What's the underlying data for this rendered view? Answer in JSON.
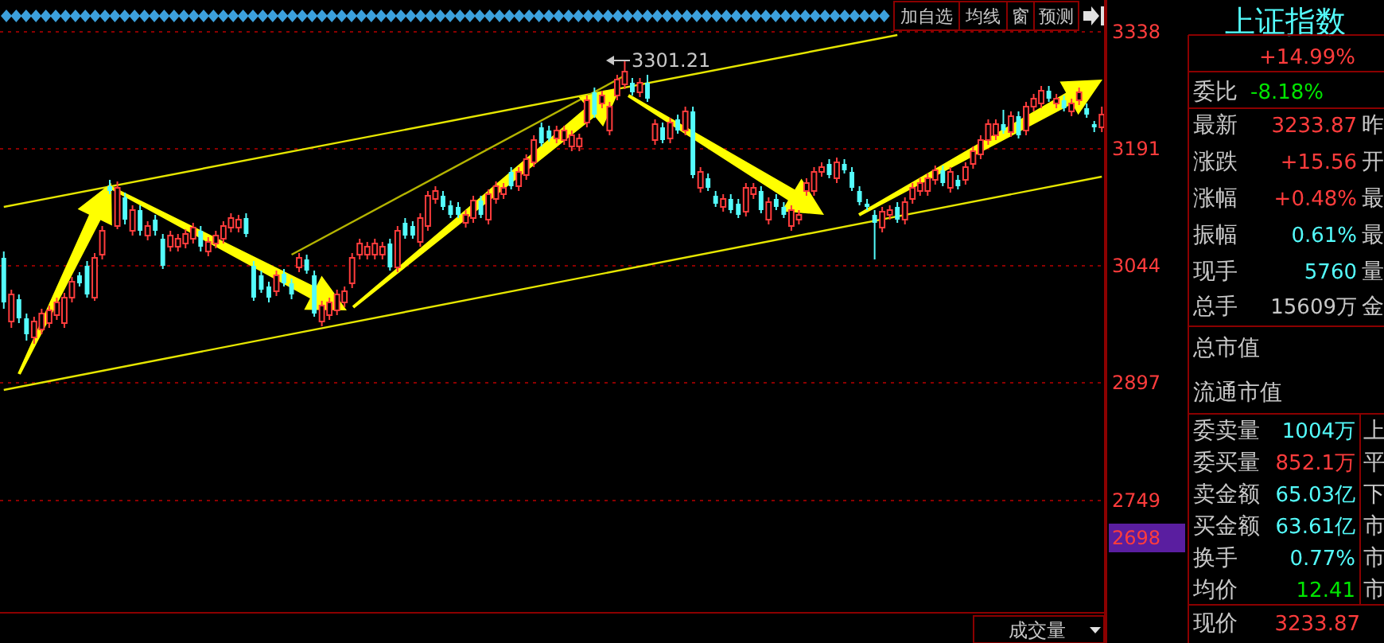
{
  "chart_data": [
    {
      "type": "candlestick",
      "ylim": [
        2608,
        3378
      ],
      "yticks": [
        3338,
        3191,
        3044,
        2897,
        2749
      ],
      "grid": "y",
      "tick_labels": "y",
      "categories": [
        null,
        null,
        null,
        null,
        null,
        null,
        null,
        null,
        null,
        null,
        null,
        null,
        null,
        null,
        null,
        null,
        null,
        null,
        null,
        null,
        null,
        null,
        null,
        null,
        null,
        null,
        null,
        null,
        null,
        null,
        null,
        null,
        null,
        null,
        null,
        null,
        null,
        null,
        null,
        null,
        null,
        null,
        null,
        null,
        null,
        null,
        null,
        null,
        null,
        null,
        null,
        null,
        null,
        null,
        null,
        null,
        null,
        null,
        null,
        null,
        null,
        null,
        null,
        null,
        null,
        null,
        null,
        null,
        null,
        null,
        null,
        null,
        null,
        null,
        null,
        null,
        null,
        null,
        null,
        null,
        null,
        null,
        null,
        null,
        null,
        null,
        null,
        null,
        null,
        null,
        null,
        null,
        null,
        null,
        null,
        null,
        null,
        null,
        null,
        null,
        null,
        null,
        null,
        null,
        null,
        null,
        null,
        null,
        null,
        null,
        null,
        null,
        null,
        null,
        null,
        null,
        null,
        null,
        null,
        null,
        null,
        null,
        null,
        null,
        null,
        null,
        null,
        null,
        null,
        null,
        null,
        null,
        null,
        null,
        null,
        null,
        null,
        null,
        null,
        null,
        null,
        null,
        null,
        null,
        null,
        null
      ],
      "ohlc": [
        [
          3054,
          3062,
          2990,
          2998
        ],
        [
          2974,
          3014,
          2966,
          3008
        ],
        [
          3002,
          3008,
          2972,
          2978
        ],
        [
          2978,
          2984,
          2950,
          2958
        ],
        [
          2954,
          2980,
          2946,
          2974
        ],
        [
          2964,
          2990,
          2958,
          2984
        ],
        [
          2972,
          2994,
          2966,
          2988
        ],
        [
          2982,
          3004,
          2976,
          2998
        ],
        [
          2972,
          3010,
          2966,
          3004
        ],
        [
          3004,
          3030,
          2998,
          3024
        ],
        [
          3032,
          3036,
          3018,
          3022
        ],
        [
          3044,
          3050,
          3004,
          3008
        ],
        [
          3004,
          3060,
          3000,
          3054
        ],
        [
          3058,
          3094,
          3052,
          3088
        ],
        [
          3144,
          3152,
          3134,
          3138
        ],
        [
          3094,
          3150,
          3090,
          3142
        ],
        [
          3130,
          3136,
          3096,
          3102
        ],
        [
          3088,
          3120,
          3082,
          3114
        ],
        [
          3114,
          3120,
          3082,
          3088
        ],
        [
          3082,
          3100,
          3076,
          3094
        ],
        [
          3102,
          3108,
          3082,
          3088
        ],
        [
          3078,
          3084,
          3040,
          3044
        ],
        [
          3068,
          3088,
          3062,
          3082
        ],
        [
          3068,
          3084,
          3062,
          3078
        ],
        [
          3072,
          3090,
          3066,
          3084
        ],
        [
          3078,
          3098,
          3072,
          3092
        ],
        [
          3088,
          3094,
          3062,
          3068
        ],
        [
          3062,
          3080,
          3056,
          3074
        ],
        [
          3072,
          3088,
          3066,
          3082
        ],
        [
          3078,
          3100,
          3072,
          3094
        ],
        [
          3092,
          3110,
          3086,
          3104
        ],
        [
          3092,
          3108,
          3086,
          3102
        ],
        [
          3104,
          3110,
          3080,
          3084
        ],
        [
          3044,
          3050,
          3000,
          3004
        ],
        [
          3032,
          3038,
          3010,
          3014
        ],
        [
          3018,
          3024,
          2998,
          3004
        ],
        [
          3012,
          3038,
          3006,
          3032
        ],
        [
          3034,
          3040,
          3018,
          3022
        ],
        [
          3022,
          3028,
          3002,
          3008
        ],
        [
          3042,
          3060,
          3036,
          3054
        ],
        [
          3052,
          3058,
          3034,
          3038
        ],
        [
          3032,
          3038,
          2980,
          2984
        ],
        [
          2974,
          3000,
          2968,
          2994
        ],
        [
          2982,
          3004,
          2976,
          2998
        ],
        [
          2988,
          3014,
          2982,
          3008
        ],
        [
          2998,
          3018,
          2992,
          3012
        ],
        [
          3022,
          3060,
          3016,
          3054
        ],
        [
          3058,
          3078,
          3052,
          3072
        ],
        [
          3058,
          3074,
          3052,
          3068
        ],
        [
          3058,
          3078,
          3052,
          3072
        ],
        [
          3058,
          3074,
          3052,
          3068
        ],
        [
          3072,
          3078,
          3038,
          3042
        ],
        [
          3042,
          3094,
          3036,
          3088
        ],
        [
          3098,
          3104,
          3078,
          3082
        ],
        [
          3094,
          3100,
          3078,
          3082
        ],
        [
          3074,
          3110,
          3068,
          3104
        ],
        [
          3094,
          3138,
          3088,
          3132
        ],
        [
          3128,
          3144,
          3122,
          3138
        ],
        [
          3132,
          3138,
          3114,
          3118
        ],
        [
          3120,
          3126,
          3104,
          3108
        ],
        [
          3118,
          3124,
          3104,
          3108
        ],
        [
          3098,
          3114,
          3092,
          3108
        ],
        [
          3104,
          3132,
          3098,
          3126
        ],
        [
          3126,
          3132,
          3104,
          3108
        ],
        [
          3102,
          3140,
          3096,
          3134
        ],
        [
          3128,
          3150,
          3122,
          3144
        ],
        [
          3134,
          3148,
          3128,
          3142
        ],
        [
          3162,
          3168,
          3140,
          3144
        ],
        [
          3144,
          3168,
          3138,
          3162
        ],
        [
          3158,
          3184,
          3152,
          3178
        ],
        [
          3174,
          3208,
          3168,
          3202
        ],
        [
          3218,
          3224,
          3194,
          3198
        ],
        [
          3214,
          3220,
          3200,
          3204
        ],
        [
          3204,
          3220,
          3198,
          3214
        ],
        [
          3202,
          3220,
          3196,
          3214
        ],
        [
          3194,
          3214,
          3188,
          3208
        ],
        [
          3194,
          3210,
          3188,
          3204
        ],
        [
          3224,
          3258,
          3218,
          3252
        ],
        [
          3262,
          3268,
          3230,
          3234
        ],
        [
          3248,
          3264,
          3242,
          3258
        ],
        [
          3214,
          3250,
          3208,
          3244
        ],
        [
          3258,
          3284,
          3252,
          3278
        ],
        [
          3272,
          3301.21,
          3266,
          3288
        ],
        [
          3274,
          3280,
          3258,
          3262
        ],
        [
          3262,
          3280,
          3256,
          3274
        ],
        [
          3274,
          3284,
          3250,
          3254
        ],
        [
          3202,
          3228,
          3196,
          3222
        ],
        [
          3218,
          3224,
          3198,
          3202
        ],
        [
          3204,
          3230,
          3198,
          3224
        ],
        [
          3228,
          3234,
          3210,
          3214
        ],
        [
          3214,
          3244,
          3208,
          3238
        ],
        [
          3238,
          3244,
          3154,
          3158
        ],
        [
          3142,
          3168,
          3136,
          3162
        ],
        [
          3154,
          3160,
          3138,
          3142
        ],
        [
          3132,
          3138,
          3118,
          3122
        ],
        [
          3118,
          3134,
          3112,
          3128
        ],
        [
          3128,
          3134,
          3110,
          3114
        ],
        [
          3122,
          3128,
          3104,
          3108
        ],
        [
          3112,
          3148,
          3106,
          3142
        ],
        [
          3134,
          3148,
          3128,
          3142
        ],
        [
          3138,
          3144,
          3110,
          3114
        ],
        [
          3102,
          3130,
          3096,
          3124
        ],
        [
          3128,
          3134,
          3114,
          3118
        ],
        [
          3118,
          3124,
          3104,
          3108
        ],
        [
          3094,
          3120,
          3088,
          3114
        ],
        [
          3102,
          3114,
          3096,
          3108
        ],
        [
          3138,
          3154,
          3132,
          3148
        ],
        [
          3138,
          3168,
          3132,
          3162
        ],
        [
          3162,
          3174,
          3156,
          3168
        ],
        [
          3172,
          3178,
          3154,
          3158
        ],
        [
          3154,
          3180,
          3148,
          3174
        ],
        [
          3172,
          3178,
          3160,
          3164
        ],
        [
          3162,
          3168,
          3138,
          3142
        ],
        [
          3138,
          3144,
          3120,
          3124
        ],
        [
          3122,
          3128,
          3114,
          3118
        ],
        [
          3108,
          3114,
          3052,
          3098
        ],
        [
          3092,
          3118,
          3086,
          3112
        ],
        [
          3108,
          3120,
          3102,
          3114
        ],
        [
          3118,
          3124,
          3098,
          3102
        ],
        [
          3102,
          3130,
          3096,
          3124
        ],
        [
          3128,
          3148,
          3122,
          3142
        ],
        [
          3138,
          3154,
          3132,
          3148
        ],
        [
          3138,
          3160,
          3132,
          3154
        ],
        [
          3152,
          3170,
          3146,
          3164
        ],
        [
          3164,
          3170,
          3144,
          3148
        ],
        [
          3142,
          3168,
          3136,
          3162
        ],
        [
          3152,
          3158,
          3140,
          3144
        ],
        [
          3152,
          3174,
          3146,
          3168
        ],
        [
          3172,
          3194,
          3166,
          3188
        ],
        [
          3184,
          3208,
          3178,
          3202
        ],
        [
          3202,
          3228,
          3196,
          3222
        ],
        [
          3208,
          3228,
          3202,
          3222
        ],
        [
          3222,
          3240,
          3210,
          3214
        ],
        [
          3212,
          3238,
          3206,
          3232
        ],
        [
          3232,
          3238,
          3204,
          3208
        ],
        [
          3214,
          3250,
          3208,
          3244
        ],
        [
          3244,
          3260,
          3238,
          3254
        ],
        [
          3248,
          3270,
          3242,
          3264
        ],
        [
          3264,
          3270,
          3250,
          3254
        ],
        [
          3248,
          3260,
          3242,
          3254
        ],
        [
          3252,
          3258,
          3238,
          3242
        ],
        [
          3238,
          3254,
          3232,
          3248
        ],
        [
          3252,
          3268,
          3246,
          3262
        ],
        [
          3242,
          3248,
          3230,
          3234
        ],
        [
          3222,
          3226,
          3212,
          3218
        ],
        [
          3218,
          3244,
          3212,
          3234
        ]
      ],
      "series": [
        {
          "type": "line",
          "color": "#e6e600",
          "values": [
            3118,
            null,
            null,
            null,
            null,
            null,
            null,
            null,
            null,
            null,
            null,
            null,
            null,
            null,
            null,
            null,
            null,
            null,
            null,
            null,
            null,
            null,
            null,
            null,
            null,
            null,
            null,
            null,
            null,
            null,
            null,
            null,
            null,
            null,
            null,
            null,
            null,
            null,
            null,
            null,
            null,
            null,
            null,
            null,
            null,
            null,
            null,
            null,
            null,
            null,
            null,
            null,
            null,
            null,
            null,
            null,
            null,
            null,
            null,
            null,
            null,
            null,
            null,
            null,
            null,
            null,
            null,
            null,
            null,
            null,
            null,
            null,
            null,
            null,
            null,
            null,
            null,
            null,
            null,
            null,
            null,
            null,
            null,
            null,
            null,
            null,
            null,
            null,
            null,
            null,
            null,
            null,
            null,
            null,
            null,
            null,
            null,
            null,
            null,
            null,
            null,
            null,
            null,
            null,
            null,
            null,
            null,
            null,
            null,
            null,
            null,
            null,
            null,
            null,
            null,
            null,
            null,
            null,
            3334,
            null,
            null,
            null,
            null,
            null,
            null,
            null,
            null,
            null,
            null,
            null,
            null,
            null,
            null,
            null,
            null,
            null,
            null,
            null,
            null,
            null,
            null,
            null,
            null,
            null,
            null,
            null
          ]
        },
        {
          "type": "line",
          "color": "#e6e600",
          "values": [
            2888,
            null,
            null,
            null,
            null,
            null,
            null,
            null,
            null,
            null,
            null,
            null,
            null,
            null,
            null,
            null,
            null,
            null,
            null,
            null,
            null,
            null,
            null,
            null,
            null,
            null,
            null,
            null,
            null,
            null,
            null,
            null,
            null,
            null,
            null,
            null,
            null,
            null,
            null,
            null,
            null,
            null,
            null,
            null,
            null,
            null,
            null,
            null,
            null,
            null,
            null,
            null,
            null,
            null,
            null,
            null,
            null,
            null,
            null,
            null,
            null,
            null,
            null,
            null,
            null,
            null,
            null,
            null,
            null,
            null,
            null,
            null,
            null,
            null,
            null,
            null,
            null,
            null,
            null,
            null,
            null,
            null,
            null,
            null,
            null,
            null,
            null,
            null,
            null,
            null,
            null,
            null,
            null,
            null,
            null,
            null,
            null,
            null,
            null,
            null,
            null,
            null,
            null,
            null,
            null,
            null,
            null,
            null,
            null,
            null,
            null,
            null,
            null,
            null,
            null,
            null,
            null,
            null,
            null,
            null,
            null,
            null,
            null,
            null,
            null,
            null,
            null,
            null,
            null,
            null,
            null,
            null,
            null,
            null,
            null,
            null,
            null,
            null,
            null,
            null,
            null,
            null,
            null,
            null,
            null,
            3156
          ]
        },
        {
          "type": "line",
          "color": "#b4b400",
          "values": [
            null,
            null,
            null,
            null,
            null,
            null,
            null,
            null,
            null,
            null,
            null,
            null,
            null,
            null,
            null,
            null,
            null,
            null,
            null,
            null,
            null,
            null,
            null,
            null,
            null,
            null,
            null,
            null,
            null,
            null,
            null,
            null,
            null,
            null,
            null,
            null,
            null,
            null,
            3058,
            null,
            null,
            null,
            null,
            null,
            null,
            null,
            null,
            null,
            null,
            null,
            null,
            null,
            null,
            null,
            null,
            null,
            null,
            null,
            null,
            null,
            null,
            null,
            null,
            null,
            null,
            null,
            null,
            null,
            null,
            null,
            null,
            null,
            null,
            null,
            null,
            null,
            null,
            null,
            null,
            null,
            null,
            null,
            3283,
            null,
            null,
            null,
            null,
            null,
            null,
            null,
            null,
            null,
            null,
            null,
            null,
            null,
            null,
            null,
            null,
            null,
            null,
            null,
            null,
            null,
            null,
            null,
            null,
            null,
            null,
            null,
            null,
            null,
            null,
            null,
            null,
            null,
            null,
            null,
            null,
            null,
            null,
            null,
            null,
            null,
            null,
            null,
            null,
            null,
            null,
            null,
            null,
            null,
            null,
            null,
            null,
            null,
            null,
            null,
            null,
            null,
            null,
            null,
            null,
            null,
            null,
            null
          ]
        }
      ],
      "annotations": [
        "3301.21",
        "2698",
        "加自选",
        "均线",
        "窗",
        "预测",
        "成交量"
      ]
    },
    {
      "type": "other",
      "title": "上证指数",
      "annotations": [
        "+14.99%",
        "委比",
        "-8.18%",
        "最新",
        "3233.87",
        "昨",
        "涨跌",
        "+15.56",
        "开",
        "涨幅",
        "+0.48%",
        "最",
        "振幅",
        "0.61%",
        "最",
        "现手",
        "5760",
        "量",
        "总手",
        "15609万",
        "金",
        "总市值",
        "流通市值",
        "委卖量",
        "1004万",
        "上",
        "委买量",
        "852.1万",
        "平",
        "卖金额",
        "65.03亿",
        "下",
        "买金额",
        "63.61亿",
        "市",
        "换手",
        "0.77%",
        "市",
        "均价",
        "12.41",
        "市",
        "现价",
        "3233.87"
      ]
    }
  ]
}
